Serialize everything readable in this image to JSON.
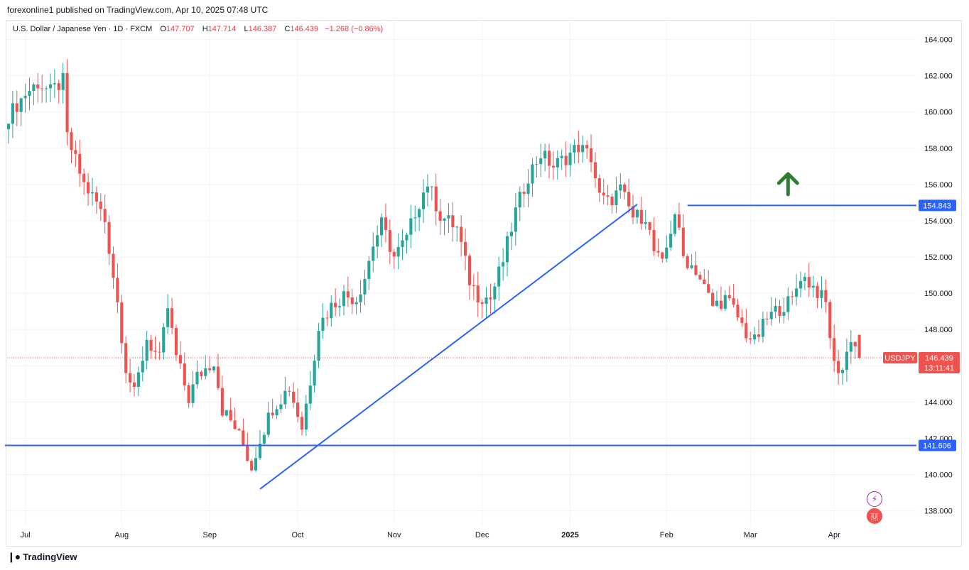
{
  "header": {
    "published": "forexonline1 published on TradingView.com, Apr 10, 2025 07:48 UTC"
  },
  "legend": {
    "symbol": "U.S. Dollar / Japanese Yen · 1D · FXCM",
    "o_label": "O",
    "o_value": "147.707",
    "h_label": "H",
    "h_value": "147.714",
    "l_label": "L",
    "l_value": "146.387",
    "c_label": "C",
    "c_value": "146.439",
    "change": "−1.268 (−0.86%)"
  },
  "footer": {
    "brand": "TradingView"
  },
  "colors": {
    "up": "#26a69a",
    "down": "#ef5350",
    "line": "#2962ff",
    "arrow": "#2e7d32",
    "grid": "#f0f3fa"
  },
  "chart_data": {
    "type": "candlestick",
    "title": "U.S. Dollar / Japanese Yen · 1D · FXCM",
    "symbol": "USDJPY",
    "ylim": [
      137.2,
      165.0
    ],
    "y_ticks": [
      "138.000",
      "140.000",
      "142.000",
      "144.000",
      "146.000",
      "148.000",
      "150.000",
      "152.000",
      "154.000",
      "156.000",
      "158.000",
      "160.000",
      "162.000",
      "164.000"
    ],
    "x_ticks": [
      {
        "label": "Jul",
        "bar": 4
      },
      {
        "label": "Aug",
        "bar": 27
      },
      {
        "label": "Sep",
        "bar": 48
      },
      {
        "label": "Oct",
        "bar": 69
      },
      {
        "label": "Nov",
        "bar": 92
      },
      {
        "label": "Dec",
        "bar": 113
      },
      {
        "label": "2025",
        "bar": 134
      },
      {
        "label": "Feb",
        "bar": 157
      },
      {
        "label": "Mar",
        "bar": 177
      },
      {
        "label": "Apr",
        "bar": 197
      }
    ],
    "x_tick_bold": [
      "2025"
    ],
    "total_bars": 210,
    "anchors": [
      [
        0,
        159.8
      ],
      [
        4,
        161.0
      ],
      [
        7,
        161.6
      ],
      [
        10,
        161.1
      ],
      [
        13,
        161.7
      ],
      [
        14,
        158.6
      ],
      [
        18,
        156.0
      ],
      [
        21,
        155.0
      ],
      [
        23,
        154.0
      ],
      [
        26,
        149.5
      ],
      [
        28,
        145.9
      ],
      [
        30,
        144.4
      ],
      [
        33,
        147.5
      ],
      [
        36,
        146.3
      ],
      [
        38,
        149.2
      ],
      [
        40,
        146.5
      ],
      [
        43,
        144.2
      ],
      [
        45,
        145.4
      ],
      [
        49,
        146.3
      ],
      [
        51,
        143.6
      ],
      [
        54,
        142.6
      ],
      [
        56,
        141.6
      ],
      [
        58,
        140.4
      ],
      [
        60,
        142.0
      ],
      [
        63,
        143.7
      ],
      [
        67,
        144.8
      ],
      [
        70,
        142.6
      ],
      [
        72,
        145.2
      ],
      [
        74,
        148.2
      ],
      [
        77,
        149.3
      ],
      [
        80,
        149.9
      ],
      [
        83,
        149.7
      ],
      [
        85,
        150.9
      ],
      [
        87,
        152.7
      ],
      [
        89,
        153.8
      ],
      [
        92,
        152.0
      ],
      [
        95,
        153.0
      ],
      [
        97,
        154.5
      ],
      [
        100,
        156.1
      ],
      [
        103,
        154.3
      ],
      [
        107,
        153.6
      ],
      [
        110,
        150.7
      ],
      [
        112,
        149.9
      ],
      [
        115,
        149.7
      ],
      [
        118,
        151.8
      ],
      [
        121,
        154.5
      ],
      [
        124,
        156.5
      ],
      [
        127,
        157.7
      ],
      [
        130,
        157.0
      ],
      [
        133,
        157.5
      ],
      [
        136,
        158.1
      ],
      [
        139,
        157.5
      ],
      [
        141,
        155.3
      ],
      [
        143,
        155.0
      ],
      [
        146,
        155.7
      ],
      [
        149,
        154.2
      ],
      [
        152,
        154.3
      ],
      [
        154,
        152.3
      ],
      [
        156,
        151.5
      ],
      [
        159,
        154.5
      ],
      [
        161,
        152.0
      ],
      [
        164,
        151.3
      ],
      [
        166,
        150.3
      ],
      [
        168,
        149.3
      ],
      [
        171,
        149.7
      ],
      [
        173,
        149.1
      ],
      [
        176,
        147.8
      ],
      [
        178,
        147.3
      ],
      [
        181,
        148.6
      ],
      [
        184,
        149.2
      ],
      [
        187,
        149.6
      ],
      [
        189,
        151.0
      ],
      [
        191,
        150.6
      ],
      [
        193,
        150.1
      ],
      [
        195,
        149.4
      ],
      [
        197,
        146.0
      ],
      [
        199,
        145.8
      ],
      [
        201,
        147.6
      ],
      [
        203,
        146.5
      ]
    ],
    "last_bar": {
      "open": 147.707,
      "high": 147.714,
      "low": 146.387,
      "close": 146.439
    },
    "hlines": [
      {
        "price": 154.843,
        "label": "154.843",
        "from_bar": 162
      },
      {
        "price": 141.606,
        "label": "141.606",
        "from_bar": 0
      }
    ],
    "trendline": {
      "from": {
        "bar": 60,
        "price": 139.2
      },
      "to": {
        "bar": 150,
        "price": 154.9
      }
    },
    "current_price": {
      "symbol": "USDJPY",
      "price": 146.439,
      "label": "146.439",
      "countdown": "13:11:41"
    },
    "annotations": [
      {
        "type": "arrow-up",
        "bar": 186,
        "price": 155.8
      }
    ]
  }
}
